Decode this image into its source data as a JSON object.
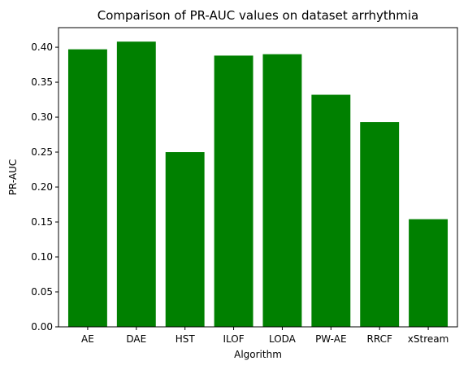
{
  "chart_data": {
    "type": "bar",
    "title": "Comparison of PR-AUC values on dataset arrhythmia",
    "xlabel": "Algorithm",
    "ylabel": "PR-AUC",
    "categories": [
      "AE",
      "DAE",
      "HST",
      "ILOF",
      "LODA",
      "PW-AE",
      "RRCF",
      "xStream"
    ],
    "values": [
      0.397,
      0.408,
      0.25,
      0.388,
      0.39,
      0.332,
      0.293,
      0.154
    ],
    "ylim": [
      0,
      0.428
    ],
    "yticks": [
      "0.00",
      "0.05",
      "0.10",
      "0.15",
      "0.20",
      "0.25",
      "0.30",
      "0.35",
      "0.40"
    ],
    "bar_color": "#008000",
    "grid": false,
    "legend": "none"
  }
}
